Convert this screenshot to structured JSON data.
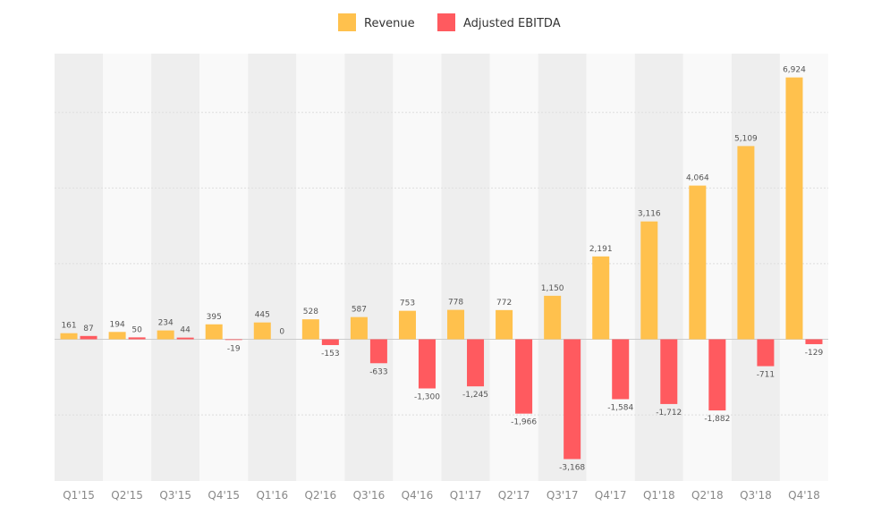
{
  "chart_data": {
    "type": "bar",
    "title": "",
    "xlabel": "",
    "ylabel": "",
    "ylim": [
      -3800,
      7400
    ],
    "grid": true,
    "legend_position": "top-center",
    "categories": [
      "Q1'15",
      "Q2'15",
      "Q3'15",
      "Q4'15",
      "Q1'16",
      "Q2'16",
      "Q3'16",
      "Q4'16",
      "Q1'17",
      "Q2'17",
      "Q3'17",
      "Q4'17",
      "Q1'18",
      "Q2'18",
      "Q3'18",
      "Q4'18"
    ],
    "series": [
      {
        "name": "Revenue",
        "color": "#FFC14D",
        "values": [
          161,
          194,
          234,
          395,
          445,
          528,
          587,
          753,
          778,
          772,
          1150,
          2191,
          3116,
          4064,
          5109,
          6924
        ],
        "labels": [
          "161",
          "194",
          "234",
          "395",
          "445",
          "528",
          "587",
          "753",
          "778",
          "772",
          "1,150",
          "2,191",
          "3,116",
          "4,064",
          "5,109",
          "6,924"
        ]
      },
      {
        "name": "Adjusted EBITDA",
        "color": "#FF5A5F",
        "values": [
          87,
          50,
          44,
          -19,
          0,
          -153,
          -633,
          -1300,
          -1245,
          -1966,
          -3168,
          -1584,
          -1712,
          -1882,
          -711,
          -129
        ],
        "labels": [
          "87",
          "50",
          "44",
          "-19",
          "0",
          "-153",
          "-633",
          "-1,300",
          "-1,245",
          "-1,966",
          "-3,168",
          "-1,584",
          "-1,712",
          "-1,882",
          "-711",
          "-129"
        ]
      }
    ],
    "colors": {
      "band_dark": "#EEEEEE",
      "band_light": "#F9F9F9",
      "gridline": "#DDDDDD",
      "zero_line": "#CCCCCC"
    }
  }
}
